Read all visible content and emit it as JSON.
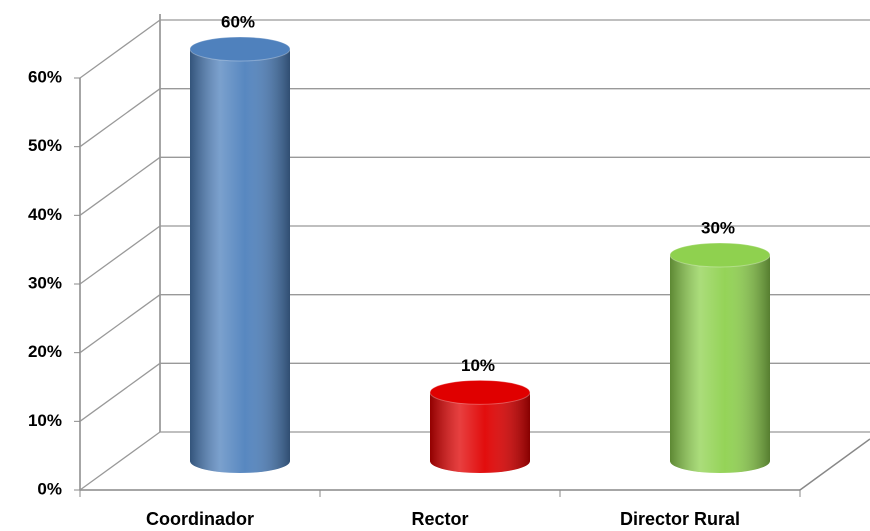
{
  "chart_data": {
    "type": "bar",
    "categories": [
      "Coordinador",
      "Rector",
      "Director Rural"
    ],
    "values": [
      60,
      10,
      30
    ],
    "value_labels": [
      "60%",
      "10%",
      "30%"
    ],
    "colors": [
      "#4f81bd",
      "#e00000",
      "#8fd14f"
    ],
    "ylim": [
      0,
      60
    ],
    "yticks": [
      {
        "value": 0,
        "label": "0%"
      },
      {
        "value": 10,
        "label": "10%"
      },
      {
        "value": 20,
        "label": "20%"
      },
      {
        "value": 30,
        "label": "30%"
      },
      {
        "value": 40,
        "label": "40%"
      },
      {
        "value": 50,
        "label": "50%"
      },
      {
        "value": 60,
        "label": "60%"
      }
    ],
    "grid": true
  }
}
